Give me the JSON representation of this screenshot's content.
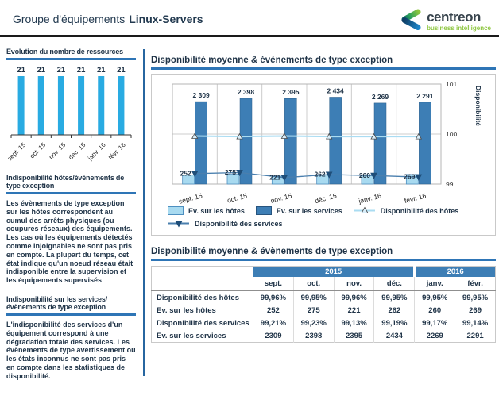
{
  "header": {
    "title_prefix": "Groupe d'équipements",
    "title_group": "Linux-Servers",
    "brand": "centreon",
    "brand_sub": "business intelligence"
  },
  "colors": {
    "accent_blue": "#2e75b6",
    "dark_text": "#1f3347",
    "table_header_blue": "#3d7eb5",
    "bar_services": "#3d7eb5",
    "bar_hosts": "#a8daf0",
    "mini_bar": "#29abe2",
    "hosts_line": "#aadcf2",
    "services_line": "#4a7fae",
    "grid": "#cccccc",
    "brand_green": "#8dc63f"
  },
  "sidebar": {
    "resources_title": "Evolution du nombre de ressources",
    "hosts_heading": "Indisponibilité  hôtes/évènements de type exception",
    "hosts_text": "Les évènements de type exception sur les hôtes correspondent au cumul des arrêts physiques (ou coupures réseaux) des équipements. Les cas où les équipements détectés comme injoignables ne sont pas pris en compte. La plupart du temps, cet état indique qu'un noeud réseau était indisponible entre la supervision et les équipements supervisés",
    "services_heading": "Indisponibilité sur les services/ évènements de type exception",
    "services_text": "L'indisponibilité des services d'un équipement correspond à une dégradation totale des services. Les évènements de type avertissement ou les états inconnus ne sont pas pris en compte dans les statistiques de disponibilité."
  },
  "main": {
    "chart_section_title": "Disponibilité moyenne & évènements de type exception",
    "table_section_title": "Disponibilité moyenne & évènements de type exception"
  },
  "chart_data": [
    {
      "id": "resources",
      "type": "bar",
      "title": "Evolution du nombre de ressources",
      "categories": [
        "sept. 15",
        "oct. 15",
        "nov. 15",
        "déc. 15",
        "janv. 16",
        "févr. 16"
      ],
      "values": [
        21,
        21,
        21,
        21,
        21,
        21
      ],
      "labels": [
        "21",
        "21",
        "21",
        "21",
        "21",
        "21"
      ],
      "ylim": [
        0,
        21
      ],
      "grid": false,
      "legend_position": "none"
    },
    {
      "id": "availability",
      "type": "bar+line",
      "title": "Disponibilité moyenne & évènements de type exception",
      "categories": [
        "sept. 15",
        "oct. 15",
        "nov. 15",
        "déc. 15",
        "janv. 16",
        "févr. 16"
      ],
      "series": [
        {
          "name": "Ev. sur les hôtes",
          "type": "bar",
          "color": "#a8daf0",
          "values": [
            252,
            275,
            221,
            262,
            260,
            269
          ],
          "labels": [
            "252",
            "275",
            "221",
            "262",
            "260",
            "269"
          ]
        },
        {
          "name": "Ev. sur les services",
          "type": "bar",
          "color": "#3d7eb5",
          "values": [
            2309,
            2398,
            2395,
            2434,
            2269,
            2291
          ],
          "labels": [
            "2 309",
            "2 398",
            "2 395",
            "2 434",
            "2 269",
            "2 291"
          ]
        },
        {
          "name": "Disponibilité des hôtes",
          "type": "line",
          "marker": "triangle-up",
          "color": "#aadcf2",
          "axis": "right",
          "values": [
            99.96,
            99.95,
            99.96,
            99.95,
            99.95,
            99.95
          ]
        },
        {
          "name": "Disponibilité des services",
          "type": "line",
          "marker": "triangle-down",
          "color": "#4a7fae",
          "axis": "right",
          "values": [
            99.21,
            99.23,
            99.13,
            99.19,
            99.17,
            99.14
          ]
        }
      ],
      "left_axis": {
        "visible": false,
        "min": 0,
        "max": 2800
      },
      "right_axis": {
        "label": "Disponibilité",
        "min": 99,
        "max": 101,
        "ticks": [
          101,
          100,
          99
        ]
      },
      "grid": true,
      "legend_position": "bottom"
    }
  ],
  "table": {
    "year_groups": [
      {
        "label": "2015",
        "span": 4
      },
      {
        "label": "2016",
        "span": 2
      }
    ],
    "columns": [
      "sept.",
      "oct.",
      "nov.",
      "déc.",
      "janv.",
      "févr."
    ],
    "rows": [
      {
        "label": "Disponibilité des hôtes",
        "values": [
          "99,96%",
          "99,95%",
          "99,96%",
          "99,95%",
          "99,95%",
          "99,95%"
        ]
      },
      {
        "label": "Ev. sur les hôtes",
        "values": [
          "252",
          "275",
          "221",
          "262",
          "260",
          "269"
        ]
      },
      {
        "label": "Disponibilité des services",
        "values": [
          "99,21%",
          "99,23%",
          "99,13%",
          "99,19%",
          "99,17%",
          "99,14%"
        ]
      },
      {
        "label": "Ev. sur les services",
        "values": [
          "2309",
          "2398",
          "2395",
          "2434",
          "2269",
          "2291"
        ]
      }
    ]
  }
}
